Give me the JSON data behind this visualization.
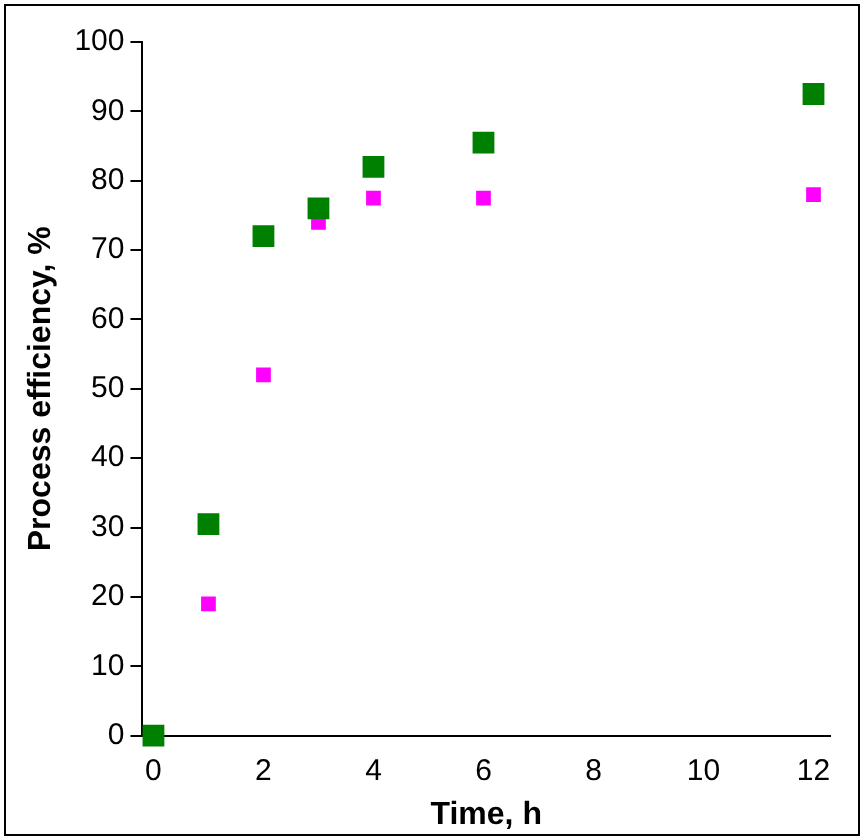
{
  "chart_data": {
    "type": "scatter",
    "xlabel": "Time, h",
    "ylabel": "Process efficiency, %",
    "series": [
      {
        "color": "#008000",
        "x": [
          0,
          1,
          2,
          3,
          4,
          6,
          12
        ],
        "values": [
          0,
          30.5,
          72,
          76,
          82,
          85.5,
          92.5
        ]
      },
      {
        "color": "#ff00ff",
        "x": [
          1,
          2,
          3,
          4,
          6,
          12
        ],
        "values": [
          19,
          52,
          74,
          77.5,
          77.5,
          78
        ]
      }
    ],
    "xlim": [
      -0.2,
      12.3
    ],
    "xticks": [
      0,
      2,
      4,
      6,
      8,
      10,
      12
    ],
    "ylim": [
      0,
      100
    ],
    "yticks": [
      0,
      10,
      20,
      30,
      40,
      50,
      60,
      70,
      80,
      90,
      100
    ],
    "grid": false,
    "legend": false,
    "marker": "square"
  }
}
